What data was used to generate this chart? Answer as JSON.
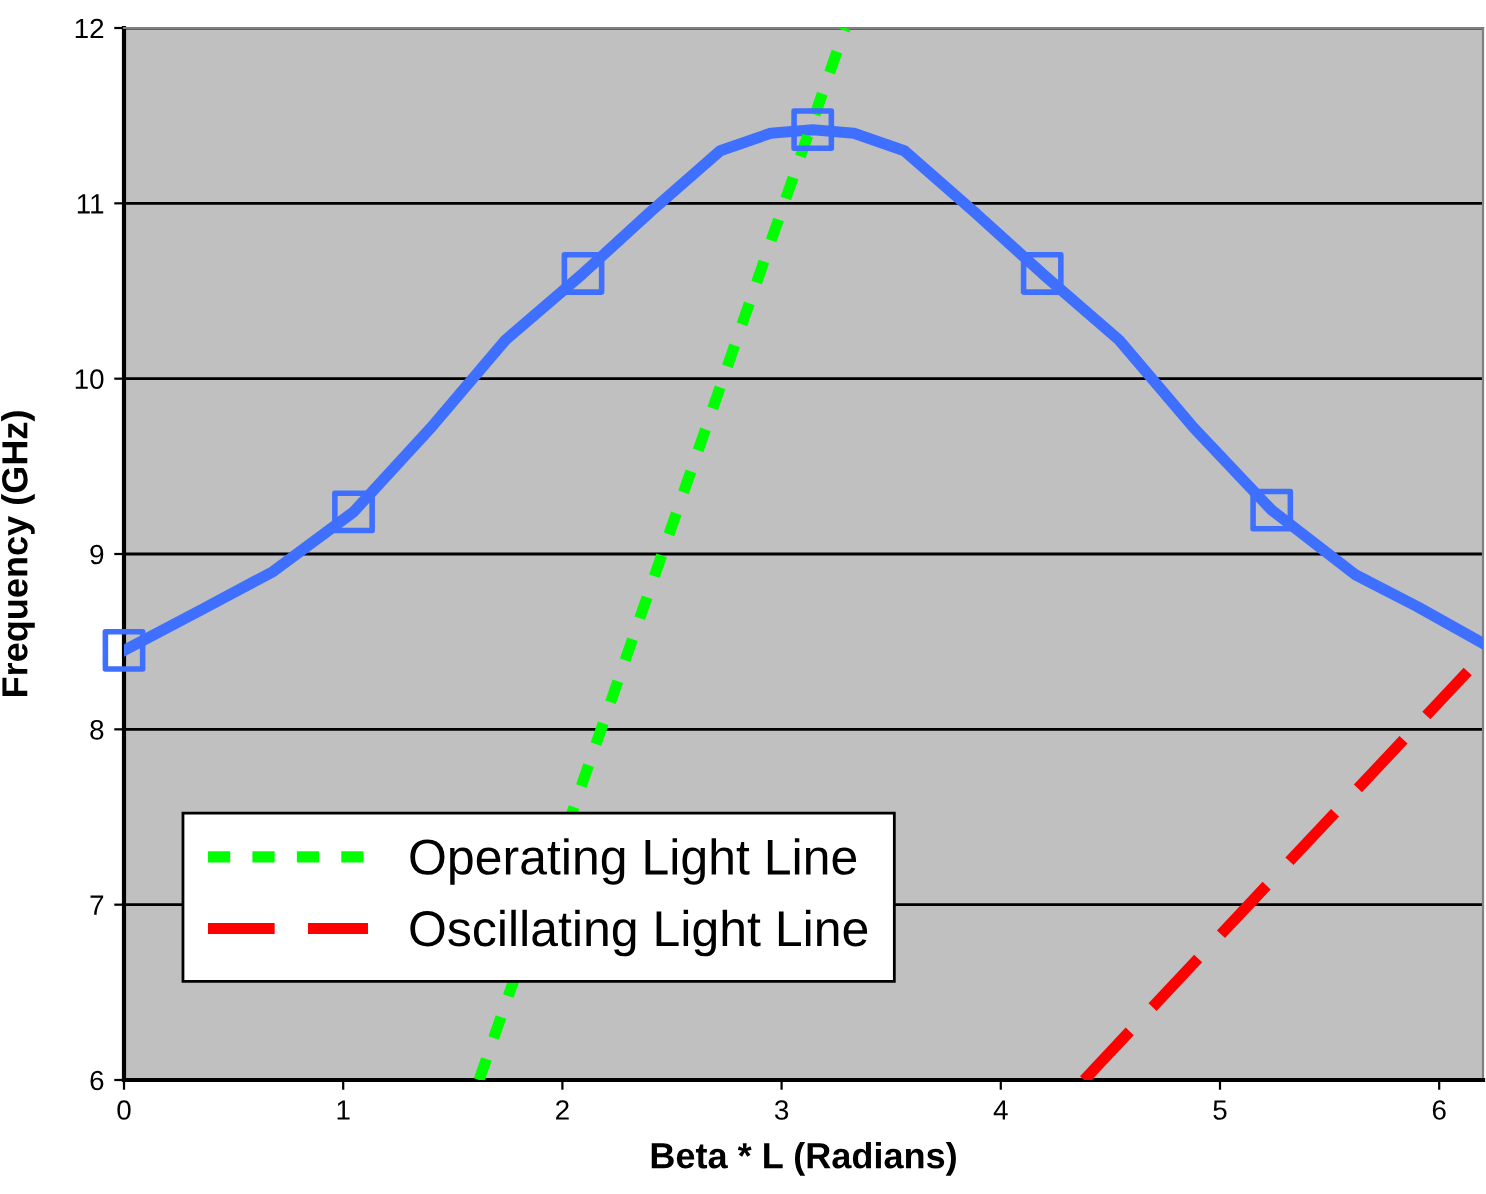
{
  "chart_data": {
    "type": "line",
    "xlabel": "Beta * L (Radians)",
    "ylabel": "Frequency (GHz)",
    "xlim": [
      0,
      6.2
    ],
    "xticks": [
      0,
      1,
      2,
      3,
      4,
      5,
      6
    ],
    "ylim": [
      6,
      12
    ],
    "yticks": [
      6,
      7,
      8,
      9,
      10,
      11,
      12
    ],
    "grid": "y",
    "legend": "bottom left",
    "series": [
      {
        "color": "#3f6fff",
        "line_style": "solid",
        "marker": "none",
        "x": [
          0,
          0.35,
          0.68,
          1.047,
          1.4,
          1.74,
          2.094,
          2.4,
          2.72,
          2.95,
          3.142,
          3.33,
          3.56,
          3.88,
          4.189,
          4.54,
          4.88,
          5.236,
          5.62,
          5.9,
          6.2
        ],
        "values": [
          8.45,
          8.68,
          8.9,
          9.24,
          9.72,
          10.22,
          10.6,
          10.95,
          11.3,
          11.4,
          11.42,
          11.4,
          11.3,
          10.95,
          10.6,
          10.22,
          9.72,
          9.25,
          8.88,
          8.7,
          8.49
        ]
      },
      {
        "type": "scatter",
        "color": "#3f6fff",
        "marker": "square",
        "x": [
          0,
          1.047,
          2.094,
          3.142,
          4.189,
          5.236
        ],
        "values": [
          8.45,
          9.24,
          10.6,
          11.42,
          10.6,
          9.25
        ]
      },
      {
        "name": "Operating Light Line",
        "color": "#00ff00",
        "line_style": "dotted",
        "marker": "none",
        "x": [
          1.62,
          3.29
        ],
        "values": [
          6,
          12
        ]
      },
      {
        "name": "Oscillating Light Line",
        "color": "#ff0000",
        "line_style": "dashed",
        "marker": "none",
        "x": [
          4.38,
          6.13
        ],
        "values": [
          6,
          8.33
        ]
      }
    ]
  }
}
